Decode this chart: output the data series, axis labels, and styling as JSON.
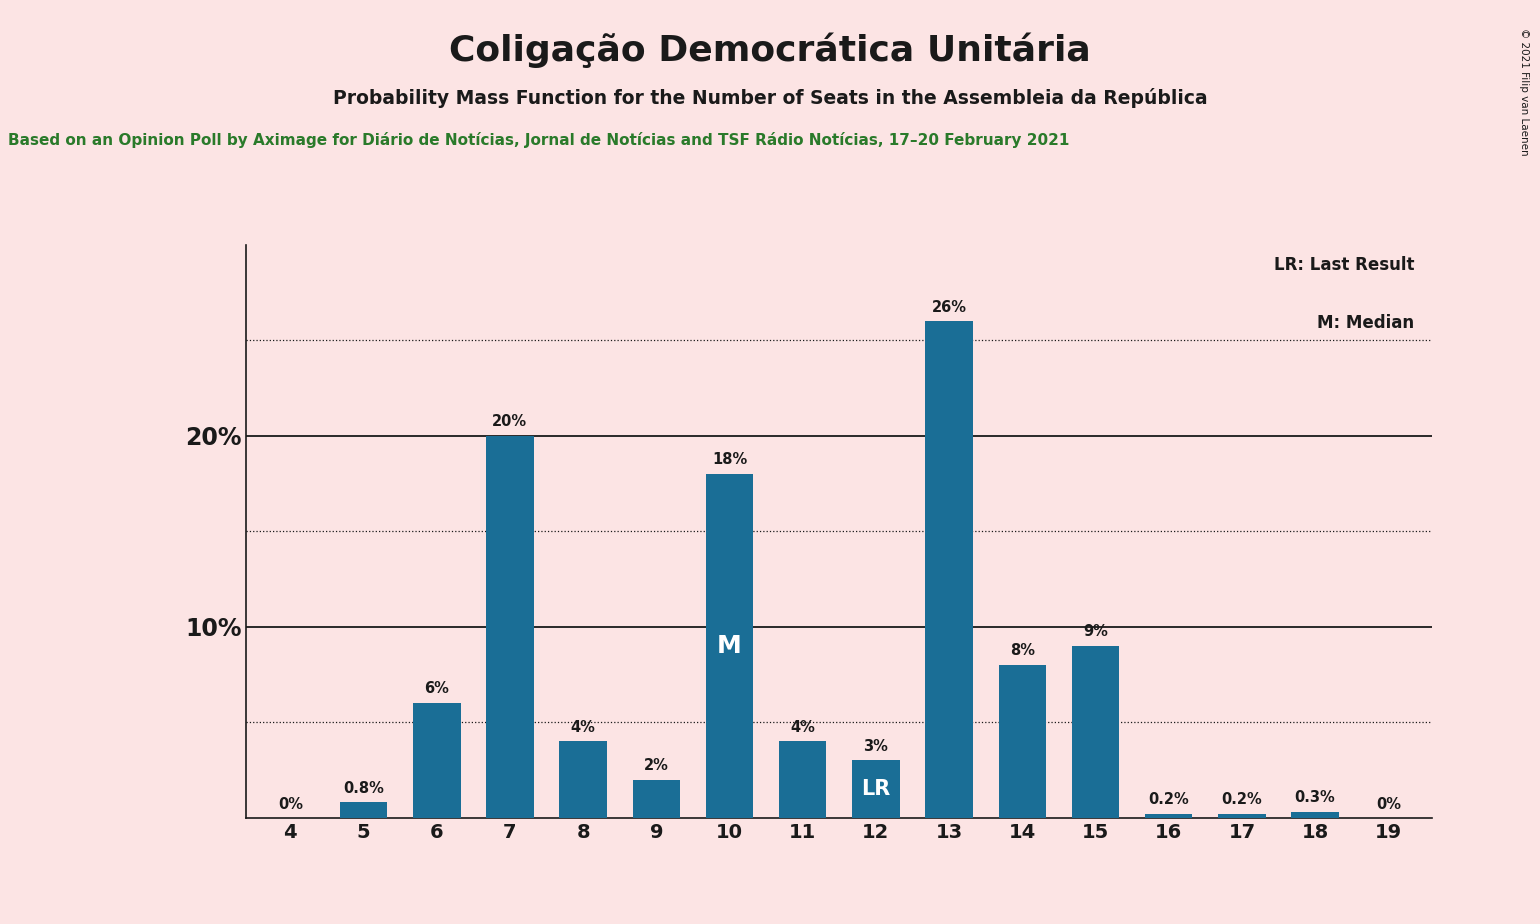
{
  "title": "Coligação Democrática Unitária",
  "subtitle": "Probability Mass Function for the Number of Seats in the Assembleia da República",
  "source_line": "Based on an Opinion Poll by Aximage for Diário de Notícias, Jornal de Notícias and TSF Rádio Notícias, 17–20 February 2021",
  "copyright": "© 2021 Filip van Laenen",
  "categories": [
    4,
    5,
    6,
    7,
    8,
    9,
    10,
    11,
    12,
    13,
    14,
    15,
    16,
    17,
    18,
    19
  ],
  "values": [
    0.0,
    0.8,
    6.0,
    20.0,
    4.0,
    2.0,
    18.0,
    4.0,
    3.0,
    26.0,
    8.0,
    9.0,
    0.2,
    0.2,
    0.3,
    0.0
  ],
  "labels": [
    "0%",
    "0.8%",
    "6%",
    "20%",
    "4%",
    "2%",
    "18%",
    "4%",
    "3%",
    "26%",
    "8%",
    "9%",
    "0.2%",
    "0.2%",
    "0.3%",
    "0%"
  ],
  "bar_color": "#1a6e96",
  "background_color": "#fce4e4",
  "title_color": "#1a1a1a",
  "subtitle_color": "#1a1a1a",
  "source_color": "#2a7a2a",
  "copyright_color": "#1a1a1a",
  "median_seat": 10,
  "last_result_seat": 12,
  "ylim": [
    0,
    30
  ],
  "solid_gridlines": [
    10,
    20
  ],
  "dotted_gridlines": [
    5,
    15,
    25
  ],
  "legend_lr": "LR: Last Result",
  "legend_m": "M: Median",
  "ytick_vals": [
    10,
    20
  ],
  "ytick_labels": [
    "10%",
    "20%"
  ]
}
